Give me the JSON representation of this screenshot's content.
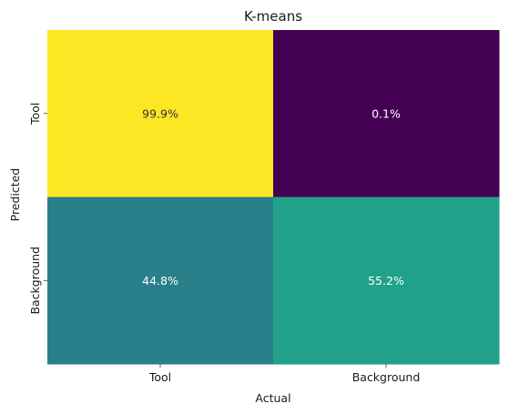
{
  "chart_data": {
    "type": "heatmap",
    "title": "K-means",
    "xlabel": "Actual",
    "ylabel": "Predicted",
    "x_categories": [
      "Tool",
      "Background"
    ],
    "y_categories": [
      "Tool",
      "Background"
    ],
    "values": [
      [
        99.9,
        0.1
      ],
      [
        44.8,
        55.2
      ]
    ],
    "labels": [
      [
        "99.9%",
        "0.1%"
      ],
      [
        "44.8%",
        "55.2%"
      ]
    ],
    "colormap": "viridis",
    "colorbar": false,
    "colors": [
      [
        "#fde725",
        "#440154"
      ],
      [
        "#297f8a",
        "#21a08a"
      ]
    ],
    "label_colors": [
      [
        "#333333",
        "#ffffff"
      ],
      [
        "#ffffff",
        "#ffffff"
      ]
    ]
  }
}
